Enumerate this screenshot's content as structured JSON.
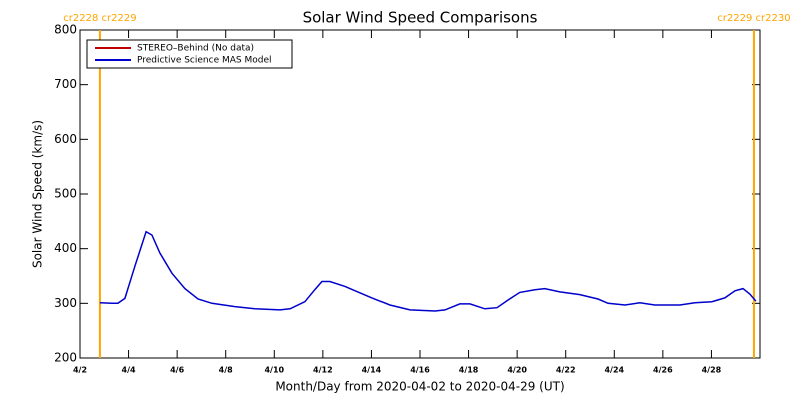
{
  "chart_data": {
    "type": "line",
    "title": "Solar Wind Speed Comparisons",
    "xlabel": "Month/Day from 2020-04-02 to 2020-04-29 (UT)",
    "ylabel": "Solar Wind Speed (km/s)",
    "xlim": [
      2,
      30
    ],
    "xticks": [
      {
        "value": 2,
        "label": "4/2"
      },
      {
        "value": 4,
        "label": "4/4"
      },
      {
        "value": 6,
        "label": "4/6"
      },
      {
        "value": 8,
        "label": "4/8"
      },
      {
        "value": 10,
        "label": "4/10"
      },
      {
        "value": 12,
        "label": "4/12"
      },
      {
        "value": 14,
        "label": "4/14"
      },
      {
        "value": 16,
        "label": "4/16"
      },
      {
        "value": 18,
        "label": "4/18"
      },
      {
        "value": 20,
        "label": "4/20"
      },
      {
        "value": 22,
        "label": "4/22"
      },
      {
        "value": 24,
        "label": "4/24"
      },
      {
        "value": 26,
        "label": "4/26"
      },
      {
        "value": 28,
        "label": "4/28"
      }
    ],
    "ylim": [
      200,
      800
    ],
    "yticks": [
      200,
      300,
      400,
      500,
      600,
      700,
      800
    ],
    "legend": "upper left",
    "boundaries": [
      {
        "x": 2.82,
        "label": "cr2228 cr2229",
        "color": "#ffa500"
      },
      {
        "x": 29.75,
        "label": "cr2229 cr2230",
        "color": "#ffa500"
      }
    ],
    "x": [
      2.82,
      3.32,
      3.56,
      3.85,
      4.26,
      4.72,
      4.96,
      5.29,
      5.79,
      6.32,
      6.86,
      7.43,
      8.38,
      9.2,
      10.23,
      10.65,
      11.26,
      11.67,
      11.96,
      12.29,
      12.91,
      13.44,
      14.02,
      14.76,
      15.59,
      16.62,
      17.03,
      17.64,
      18.06,
      18.67,
      19.17,
      19.62,
      20.11,
      20.73,
      21.14,
      21.76,
      22.58,
      23.33,
      23.74,
      24.44,
      25.05,
      25.67,
      26.7,
      27.32,
      28.02,
      28.55,
      28.97,
      29.3,
      29.58,
      29.83
    ],
    "series": [
      {
        "name": "STEREO–Behind (No data)",
        "color": "#c00000",
        "values": [
          null,
          null,
          null,
          null,
          null,
          null,
          null,
          null,
          null,
          null,
          null,
          null,
          null,
          null,
          null,
          null,
          null,
          null,
          null,
          null,
          null,
          null,
          null,
          null,
          null,
          null,
          null,
          null,
          null,
          null,
          null,
          null,
          null,
          null,
          null,
          null,
          null,
          null,
          null,
          null,
          null,
          null,
          null,
          null,
          null,
          null,
          null,
          null,
          null,
          null
        ]
      },
      {
        "name": "Predictive Science MAS Model",
        "color": "#0000cc",
        "values": [
          301,
          300,
          300,
          309,
          368,
          431,
          425,
          392,
          355,
          327,
          308,
          300,
          294,
          290,
          288,
          290,
          303,
          325,
          340,
          340,
          331,
          321,
          310,
          297,
          288,
          286,
          288,
          299,
          299,
          290,
          292,
          306,
          320,
          325,
          327,
          321,
          316,
          308,
          300,
          297,
          301,
          297,
          297,
          301,
          303,
          310,
          323,
          327,
          317,
          304
        ]
      }
    ]
  }
}
